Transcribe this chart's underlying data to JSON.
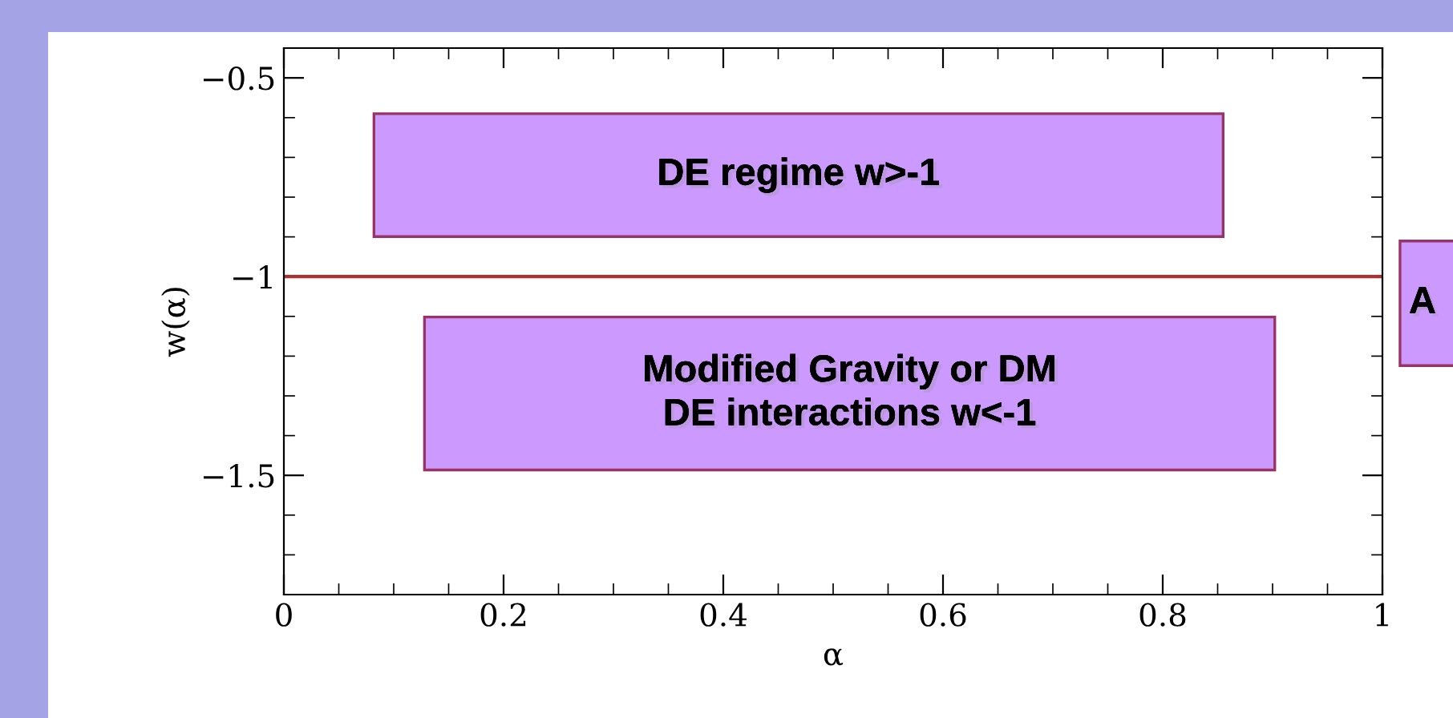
{
  "chart_data": {
    "type": "line",
    "xlabel": "α",
    "ylabel": "w(α)",
    "x": [
      0,
      1
    ],
    "series": [
      {
        "color": "#b03030",
        "values": [
          -1,
          -1
        ]
      }
    ],
    "xlim": [
      0,
      1
    ],
    "ylim": [
      -1.8,
      -0.425
    ],
    "xticks": [
      0,
      0.2,
      0.4,
      0.6,
      0.8,
      1
    ],
    "yticks": [
      {
        "value": -0.5,
        "label": "−0.5"
      },
      {
        "value": -1,
        "label": "−1"
      },
      {
        "value": -1.5,
        "label": "−1.5"
      }
    ],
    "line_style": "solid",
    "annotations": [
      "DE regime w>-1",
      "Modified Gravity or DM\nDE interactions w<-1",
      "A"
    ]
  }
}
